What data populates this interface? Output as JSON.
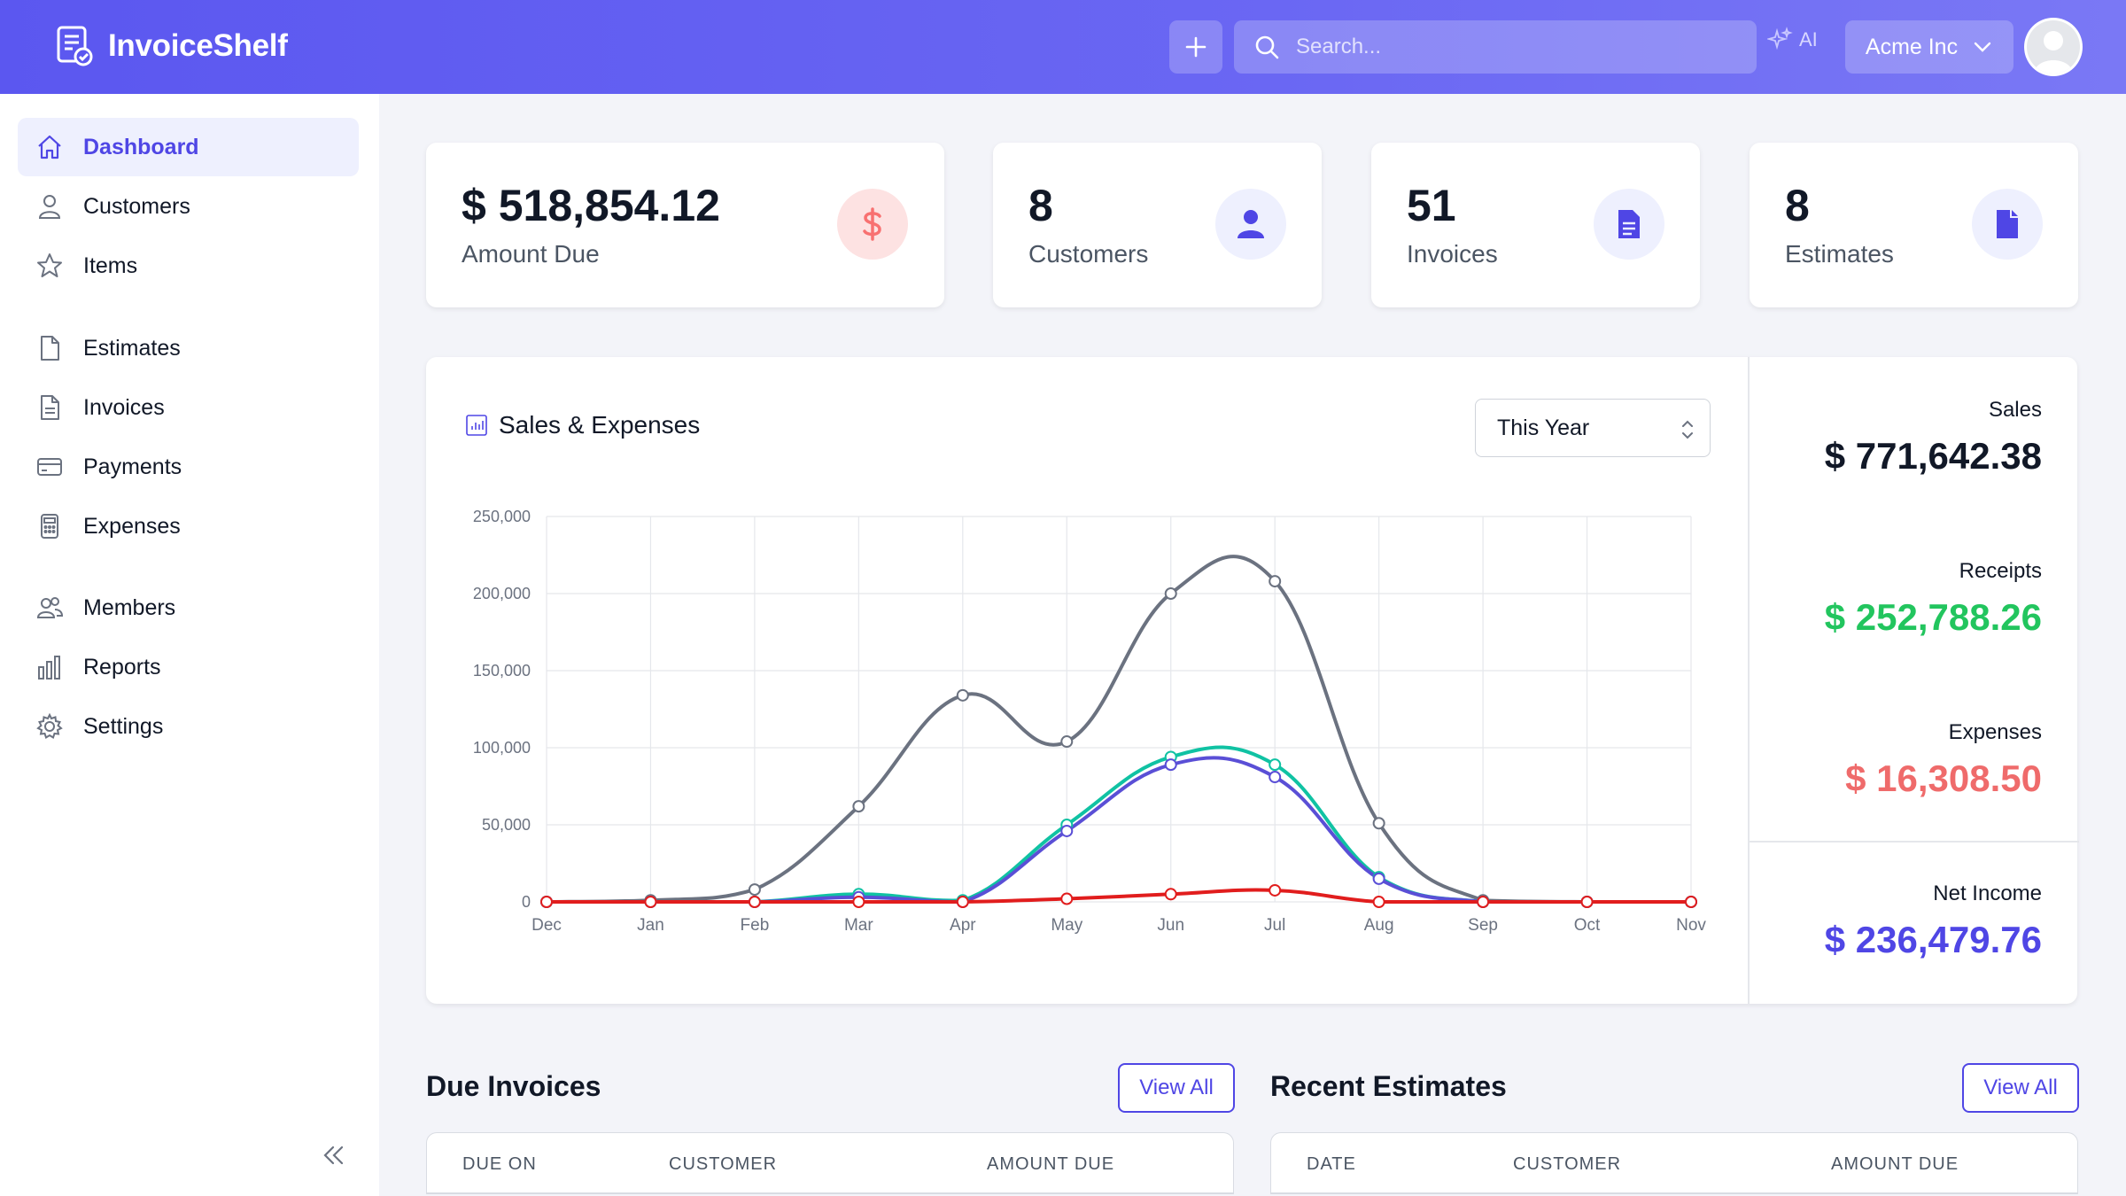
{
  "app": {
    "name": "InvoiceShelf"
  },
  "header": {
    "search_placeholder": "Search...",
    "ai_label": "AI",
    "company": "Acme Inc"
  },
  "sidebar": {
    "items": [
      {
        "label": "Dashboard",
        "icon": "home-icon",
        "active": true
      },
      {
        "label": "Customers",
        "icon": "user-icon"
      },
      {
        "label": "Items",
        "icon": "star-icon"
      },
      {
        "label": "Estimates",
        "icon": "document-icon"
      },
      {
        "label": "Invoices",
        "icon": "document-text-icon"
      },
      {
        "label": "Payments",
        "icon": "credit-card-icon"
      },
      {
        "label": "Expenses",
        "icon": "calculator-icon"
      },
      {
        "label": "Members",
        "icon": "users-icon"
      },
      {
        "label": "Reports",
        "icon": "chart-bar-icon"
      },
      {
        "label": "Settings",
        "icon": "cog-icon"
      }
    ]
  },
  "stats": [
    {
      "value": "$ 518,854.12",
      "label": "Amount Due",
      "icon": "dollar-icon",
      "icon_color": "#f87171",
      "icon_bg": "#fde2e2"
    },
    {
      "value": "8",
      "label": "Customers",
      "icon": "user-icon",
      "icon_color": "#4f46e5",
      "icon_bg": "#eef0fe"
    },
    {
      "value": "51",
      "label": "Invoices",
      "icon": "document-text-icon",
      "icon_color": "#4f46e5",
      "icon_bg": "#eef0fe"
    },
    {
      "value": "8",
      "label": "Estimates",
      "icon": "document-icon",
      "icon_color": "#4f46e5",
      "icon_bg": "#eef0fe"
    }
  ],
  "chart_section": {
    "title": "Sales & Expenses",
    "period": "This Year"
  },
  "summary": {
    "sales_label": "Sales",
    "sales_value": "$ 771,642.38",
    "receipts_label": "Receipts",
    "receipts_value": "$ 252,788.26",
    "expenses_label": "Expenses",
    "expenses_value": "$ 16,308.50",
    "net_label": "Net Income",
    "net_value": "$ 236,479.76"
  },
  "chart_data": {
    "type": "line",
    "categories": [
      "Dec",
      "Jan",
      "Feb",
      "Mar",
      "Apr",
      "May",
      "Jun",
      "Jul",
      "Aug",
      "Sep",
      "Oct",
      "Nov"
    ],
    "ylim": [
      0,
      250000
    ],
    "yticks": [
      0,
      50000,
      100000,
      150000,
      200000,
      250000
    ],
    "ytick_labels": [
      "0",
      "50,000",
      "100,000",
      "150,000",
      "200,000",
      "250,000"
    ],
    "grid": true,
    "series": [
      {
        "color": "#6b7280",
        "values": [
          0,
          1000,
          8000,
          62000,
          134000,
          104000,
          200000,
          208000,
          51000,
          1000,
          0,
          0
        ]
      },
      {
        "color": "#10c2a3",
        "values": [
          0,
          0,
          0,
          5000,
          1000,
          50000,
          94000,
          89000,
          16000,
          0,
          0,
          0
        ]
      },
      {
        "color": "#5a4fd6",
        "values": [
          0,
          0,
          0,
          3000,
          0,
          46000,
          89000,
          81000,
          15000,
          0,
          0,
          0
        ]
      },
      {
        "color": "#e11d1d",
        "values": [
          0,
          0,
          0,
          0,
          0,
          2000,
          5000,
          7500,
          0,
          0,
          0,
          0
        ]
      }
    ]
  },
  "due_invoices": {
    "title": "Due Invoices",
    "view_all": "View All",
    "columns": [
      "DUE ON",
      "CUSTOMER",
      "AMOUNT DUE"
    ]
  },
  "recent_estimates": {
    "title": "Recent Estimates",
    "view_all": "View All",
    "columns": [
      "DATE",
      "CUSTOMER",
      "AMOUNT DUE"
    ]
  },
  "colors": {
    "primary": "#4f46e5",
    "success": "#22c55e",
    "danger": "#ef6b6b",
    "net": "#4f46e5"
  }
}
